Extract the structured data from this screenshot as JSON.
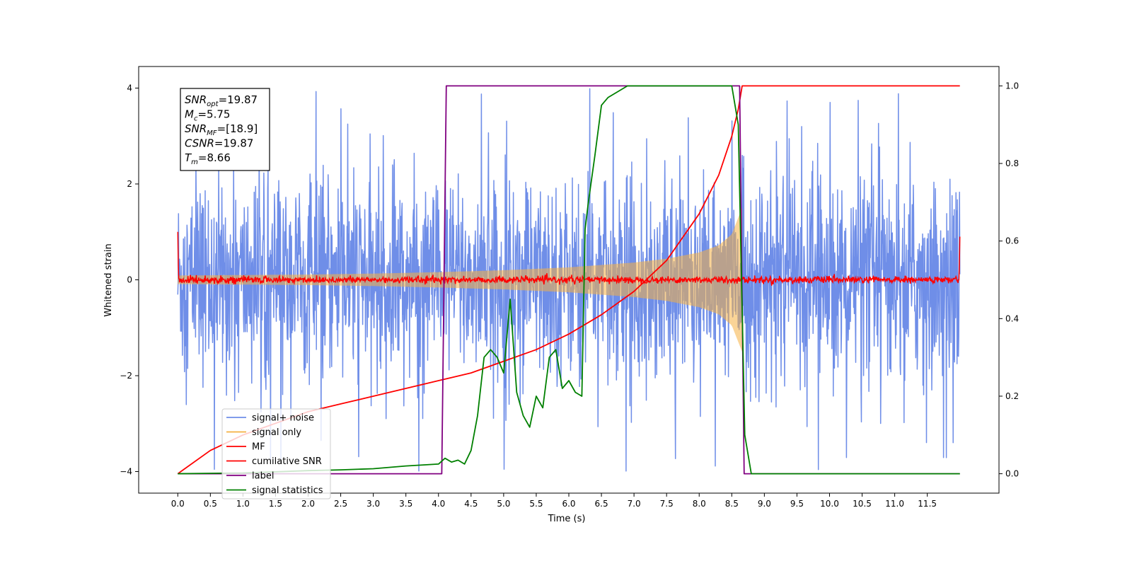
{
  "chart_data": {
    "type": "line",
    "title": "",
    "xlabel": "Time (s)",
    "ylabel": "Whitened strain",
    "xlim": [
      -0.6,
      12.6
    ],
    "ylim": [
      -4.45,
      4.45
    ],
    "y2lim": [
      -0.05,
      1.05
    ],
    "xticks": [
      0.0,
      0.5,
      1.0,
      1.5,
      2.0,
      2.5,
      3.0,
      3.5,
      4.0,
      4.5,
      5.0,
      5.5,
      6.0,
      6.5,
      7.0,
      7.5,
      8.0,
      8.5,
      9.0,
      9.5,
      10.0,
      10.5,
      11.0,
      11.5
    ],
    "xtick_labels": [
      "0.0",
      "0.5",
      "1.0",
      "1.5",
      "2.0",
      "2.5",
      "3.0",
      "3.5",
      "4.0",
      "4.5",
      "5.0",
      "5.5",
      "6.0",
      "6.5",
      "7.0",
      "7.5",
      "8.0",
      "8.5",
      "9.0",
      "9.5",
      "10.0",
      "10.5",
      "11.0",
      "11.5"
    ],
    "yticks": [
      -4,
      -2,
      0,
      2,
      4
    ],
    "ytick_labels": [
      "−4",
      "−2",
      "0",
      "2",
      "4"
    ],
    "y2ticks": [
      0.0,
      0.2,
      0.4,
      0.6,
      0.8,
      1.0
    ],
    "y2tick_labels": [
      "0.0",
      "0.2",
      "0.4",
      "0.6",
      "0.8",
      "1.0"
    ],
    "grid": false,
    "legend_position": "lower-left",
    "annotation": {
      "lines": [
        {
          "base": "SNR",
          "sub": "opt",
          "rest": "=19.87"
        },
        {
          "base": "M",
          "sub": "c",
          "rest": "=5.75"
        },
        {
          "base": "SNR",
          "sub": "MF",
          "rest": "=[18.9]"
        },
        {
          "base": "CSNR",
          "sub": "",
          "rest": "=19.87"
        },
        {
          "base": "T",
          "sub": "m",
          "rest": "=8.66"
        }
      ]
    },
    "series": [
      {
        "name": "signal+ noise",
        "axis": "left",
        "color": "#6f8ee8",
        "kind": "noise-band",
        "x_range": [
          0.0,
          12.0
        ],
        "envelope": [
          0.0,
          0.0,
          0.0,
          0.0,
          0.0,
          0.0,
          0.0,
          0.0,
          0.0,
          0.0,
          0.0,
          0.0
        ],
        "typical_amplitude": 1.6,
        "peak_amplitude": 4.0
      },
      {
        "name": "signal only",
        "axis": "left",
        "color": "#f5b041",
        "kind": "chirp",
        "x_range": [
          0.0,
          8.66
        ],
        "amplitude_points": {
          "x": [
            0.0,
            1.0,
            2.0,
            3.0,
            4.0,
            5.0,
            6.0,
            7.0,
            7.5,
            8.0,
            8.3,
            8.5,
            8.6,
            8.66
          ],
          "y": [
            0.09,
            0.1,
            0.11,
            0.13,
            0.16,
            0.2,
            0.26,
            0.36,
            0.44,
            0.57,
            0.72,
            0.95,
            1.3,
            1.5
          ]
        }
      },
      {
        "name": "MF",
        "axis": "left",
        "color": "#ff0000",
        "kind": "noise-line",
        "x_range": [
          0.0,
          12.0
        ],
        "typical_amplitude": 0.06,
        "edge_values": [
          1.0,
          0.9
        ]
      },
      {
        "name": "cumilative SNR",
        "axis": "right",
        "color": "#ff0000",
        "kind": "line",
        "x": [
          0.0,
          0.5,
          1.0,
          1.5,
          2.0,
          2.5,
          3.0,
          3.5,
          4.0,
          4.5,
          5.0,
          5.5,
          6.0,
          6.5,
          7.0,
          7.5,
          8.0,
          8.3,
          8.5,
          8.6,
          8.66,
          9.0,
          12.0
        ],
        "y": [
          0.0,
          0.06,
          0.1,
          0.13,
          0.16,
          0.18,
          0.2,
          0.22,
          0.24,
          0.26,
          0.29,
          0.32,
          0.36,
          0.41,
          0.47,
          0.55,
          0.67,
          0.77,
          0.87,
          0.94,
          1.0,
          1.0,
          1.0
        ]
      },
      {
        "name": "label",
        "axis": "right",
        "color": "#800080",
        "kind": "line",
        "x": [
          0.0,
          4.05,
          4.12,
          8.62,
          8.69,
          12.0
        ],
        "y": [
          0.0,
          0.0,
          1.0,
          1.0,
          0.0,
          0.0
        ]
      },
      {
        "name": "signal statistics",
        "axis": "right",
        "color": "#008000",
        "kind": "line",
        "x": [
          0.0,
          0.5,
          1.0,
          1.5,
          2.0,
          2.5,
          3.0,
          3.5,
          4.0,
          4.1,
          4.2,
          4.3,
          4.4,
          4.5,
          4.6,
          4.7,
          4.8,
          4.9,
          5.0,
          5.1,
          5.2,
          5.3,
          5.4,
          5.5,
          5.6,
          5.7,
          5.8,
          5.9,
          6.0,
          6.1,
          6.2,
          6.25,
          6.3,
          6.4,
          6.5,
          6.6,
          6.7,
          6.8,
          6.9,
          7.0,
          7.5,
          8.0,
          8.5,
          8.6,
          8.7,
          8.8,
          9.0,
          12.0
        ],
        "y": [
          0.0,
          0.001,
          0.002,
          0.005,
          0.008,
          0.01,
          0.013,
          0.02,
          0.025,
          0.04,
          0.03,
          0.035,
          0.025,
          0.06,
          0.15,
          0.3,
          0.32,
          0.3,
          0.26,
          0.45,
          0.21,
          0.15,
          0.12,
          0.2,
          0.17,
          0.3,
          0.32,
          0.22,
          0.24,
          0.21,
          0.2,
          0.63,
          0.7,
          0.82,
          0.95,
          0.97,
          0.98,
          0.99,
          1.0,
          1.0,
          1.0,
          1.0,
          1.0,
          0.9,
          0.1,
          0.0,
          0.0,
          0.0
        ]
      }
    ]
  }
}
